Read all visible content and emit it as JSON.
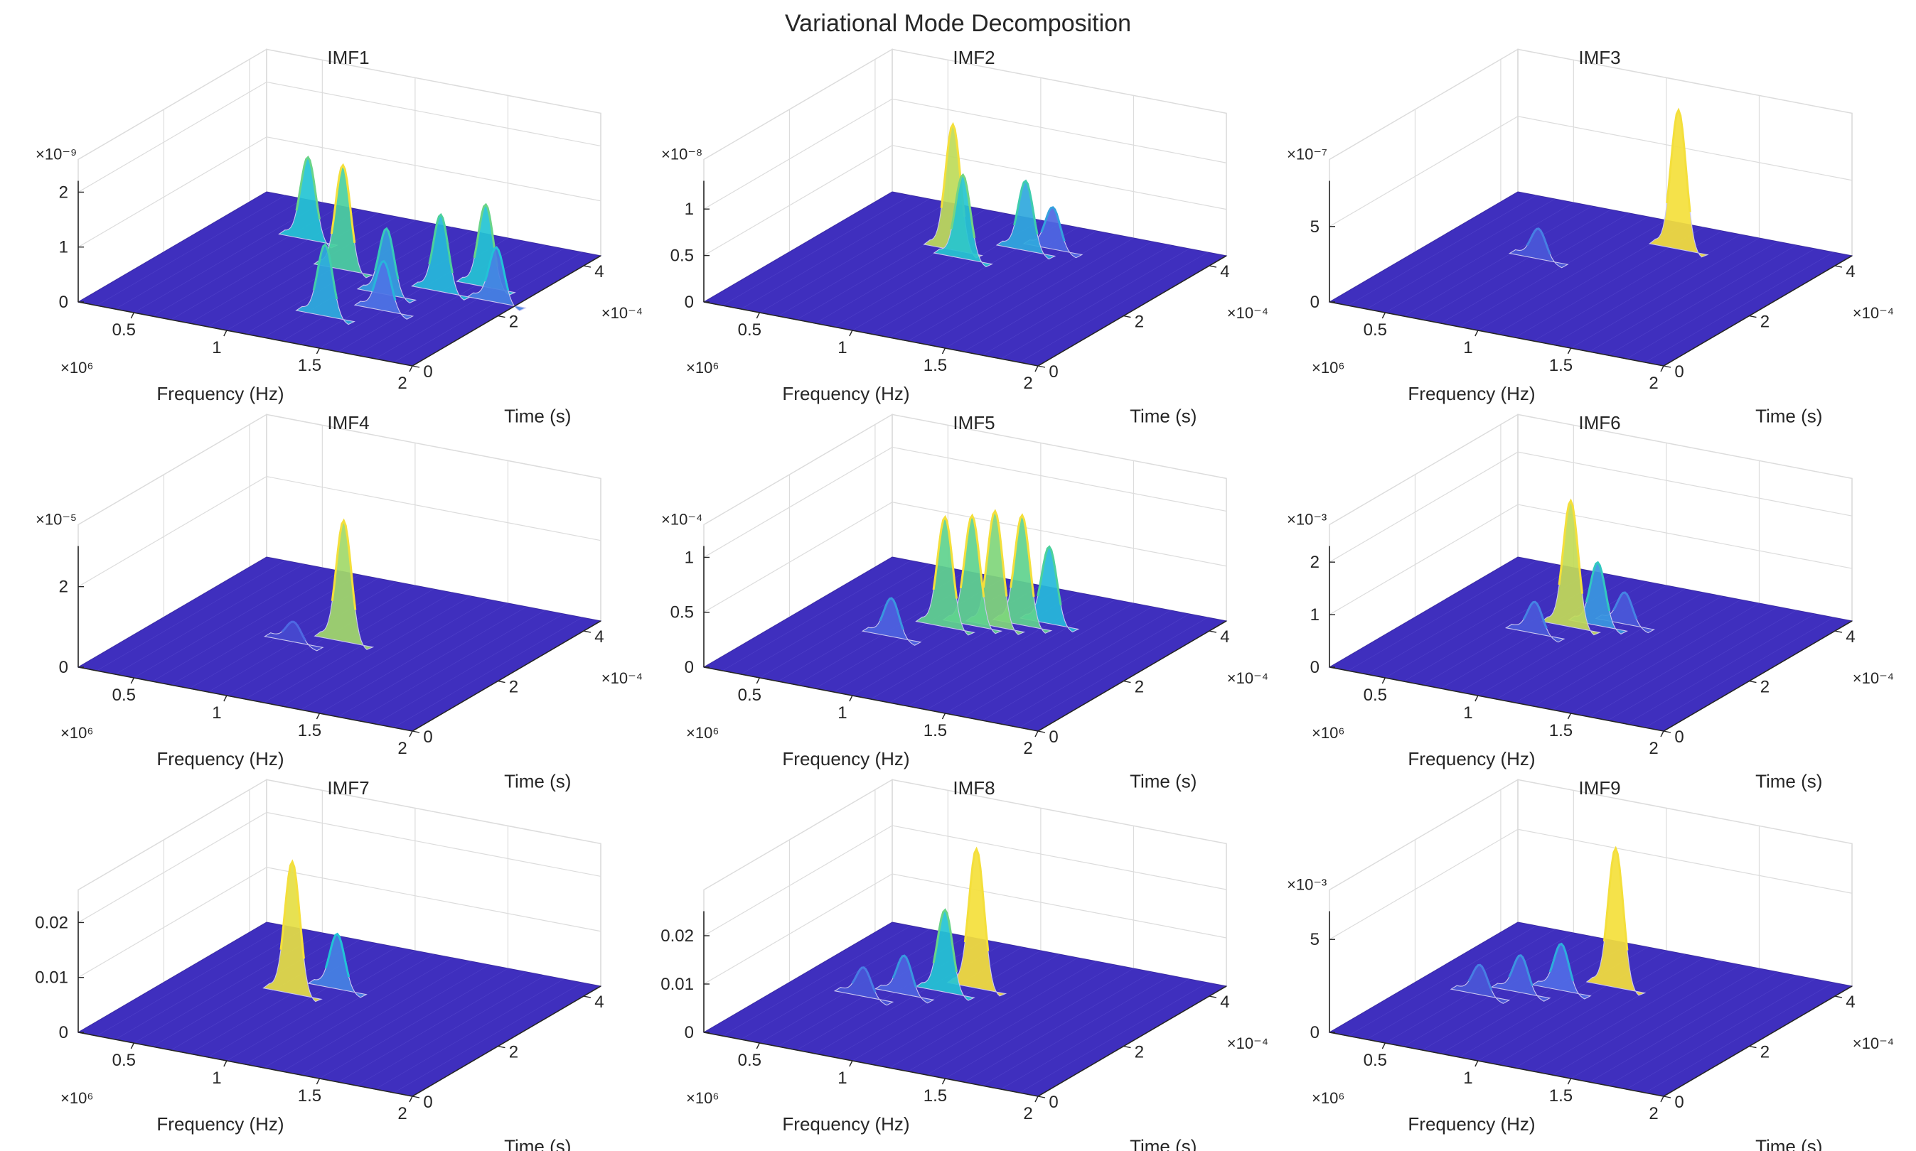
{
  "figure": {
    "title": "Variational Mode Decomposition"
  },
  "colors": {
    "surface_base": "#3F2FBE",
    "peak_cyan": "#21C3D8",
    "peak_yellow": "#F4DF3B",
    "mesh": "#C9C6F0",
    "axis": "#262626",
    "grid": "#DCDCDC"
  },
  "chart_data": [
    {
      "type": "surface3d",
      "title": "IMF1",
      "xlabel": "Frequency (Hz)",
      "ylabel": "Time (s)",
      "x_exponent": "×10⁶",
      "y_exponent": "×10⁻⁴",
      "z_exponent": "×10⁻⁹",
      "xticks": [
        "0.5",
        "1",
        "1.5",
        "2"
      ],
      "yticks": [
        "0",
        "2",
        "4"
      ],
      "zticks": [
        "0",
        "1",
        "2"
      ],
      "zlim": [
        0,
        2.2
      ],
      "peaks": [
        {
          "f": 0.7,
          "t": 3.2,
          "z": 1.5
        },
        {
          "f": 1.05,
          "t": 2.5,
          "z": 1.9
        },
        {
          "f": 1.3,
          "t": 1.0,
          "z": 1.3
        },
        {
          "f": 1.4,
          "t": 2.0,
          "z": 1.2
        },
        {
          "f": 1.6,
          "t": 2.4,
          "z": 1.4
        },
        {
          "f": 1.75,
          "t": 2.8,
          "z": 1.5
        },
        {
          "f": 1.9,
          "t": 2.4,
          "z": 1.0
        },
        {
          "f": 1.5,
          "t": 1.5,
          "z": 0.9
        }
      ]
    },
    {
      "type": "surface3d",
      "title": "IMF2",
      "xlabel": "Frequency (Hz)",
      "ylabel": "Time (s)",
      "x_exponent": "×10⁶",
      "y_exponent": "×10⁻⁴",
      "z_exponent": "×10⁻⁸",
      "xticks": [
        "0.5",
        "1",
        "1.5",
        "2"
      ],
      "yticks": [
        "0",
        "2",
        "4"
      ],
      "zticks": [
        "0",
        "0.5",
        "1"
      ],
      "zlim": [
        0,
        1.3
      ],
      "peaks": [
        {
          "f": 0.85,
          "t": 3.0,
          "z": 1.35
        },
        {
          "f": 0.95,
          "t": 2.8,
          "z": 0.9
        },
        {
          "f": 1.15,
          "t": 3.4,
          "z": 0.75
        },
        {
          "f": 1.25,
          "t": 3.6,
          "z": 0.45
        }
      ]
    },
    {
      "type": "surface3d",
      "title": "IMF3",
      "xlabel": "Frequency (Hz)",
      "ylabel": "Time (s)",
      "x_exponent": "×10⁶",
      "y_exponent": "×10⁻⁴",
      "z_exponent": "×10⁻⁷",
      "xticks": [
        "0.5",
        "1",
        "1.5",
        "2"
      ],
      "yticks": [
        "0",
        "2",
        "4"
      ],
      "zticks": [
        "0",
        "5"
      ],
      "zlim": [
        0,
        8
      ],
      "peaks": [
        {
          "f": 1.25,
          "t": 3.6,
          "z": 9.5
        },
        {
          "f": 0.75,
          "t": 2.5,
          "z": 2.0
        }
      ]
    },
    {
      "type": "surface3d",
      "title": "IMF4",
      "xlabel": "Frequency (Hz)",
      "ylabel": "Time (s)",
      "x_exponent": "×10⁶",
      "y_exponent": "×10⁻⁴",
      "z_exponent": "×10⁻⁵",
      "xticks": [
        "0.5",
        "1",
        "1.5",
        "2"
      ],
      "yticks": [
        "0",
        "2",
        "4"
      ],
      "zticks": [
        "0",
        "2"
      ],
      "zlim": [
        0,
        3
      ],
      "peaks": [
        {
          "f": 1.1,
          "t": 2.3,
          "z": 3.0
        },
        {
          "f": 0.9,
          "t": 2.0,
          "z": 0.5
        }
      ]
    },
    {
      "type": "surface3d",
      "title": "IMF5",
      "xlabel": "Frequency (Hz)",
      "ylabel": "Time (s)",
      "x_exponent": "×10⁶",
      "y_exponent": "×10⁻⁴",
      "z_exponent": "×10⁻⁴",
      "xticks": [
        "0.5",
        "1",
        "1.5",
        "2"
      ],
      "yticks": [
        "0",
        "2",
        "4"
      ],
      "zticks": [
        "0",
        "0.5",
        "1"
      ],
      "zlim": [
        0,
        1.1
      ],
      "peaks": [
        {
          "f": 0.9,
          "t": 2.6,
          "z": 1.0
        },
        {
          "f": 1.0,
          "t": 2.8,
          "z": 1.0
        },
        {
          "f": 1.1,
          "t": 2.9,
          "z": 1.05
        },
        {
          "f": 1.2,
          "t": 3.1,
          "z": 1.0
        },
        {
          "f": 1.3,
          "t": 3.3,
          "z": 0.7
        },
        {
          "f": 0.75,
          "t": 2.0,
          "z": 0.35
        }
      ]
    },
    {
      "type": "surface3d",
      "title": "IMF6",
      "xlabel": "Frequency (Hz)",
      "ylabel": "Time (s)",
      "x_exponent": "×10⁶",
      "y_exponent": "×10⁻⁴",
      "z_exponent": "×10⁻³",
      "xticks": [
        "0.5",
        "1",
        "1.5",
        "2"
      ],
      "yticks": [
        "0",
        "2",
        "4"
      ],
      "zticks": [
        "0",
        "1",
        "2"
      ],
      "zlim": [
        0,
        2.3
      ],
      "peaks": [
        {
          "f": 0.9,
          "t": 2.6,
          "z": 2.4
        },
        {
          "f": 1.0,
          "t": 2.8,
          "z": 1.2
        },
        {
          "f": 1.1,
          "t": 3.0,
          "z": 0.6
        },
        {
          "f": 0.8,
          "t": 2.2,
          "z": 0.6
        }
      ]
    },
    {
      "type": "surface3d",
      "title": "IMF7",
      "xlabel": "Frequency (Hz)",
      "ylabel": "Time (s)",
      "x_exponent": "×10⁶",
      "y_exponent": null,
      "z_exponent": null,
      "xticks": [
        "0.5",
        "1",
        "1.5",
        "2"
      ],
      "yticks": [
        "0",
        "2",
        "4"
      ],
      "zticks": [
        "0",
        "0.01",
        "0.02"
      ],
      "zlim": [
        0,
        0.022
      ],
      "peaks": [
        {
          "f": 0.8,
          "t": 2.4,
          "z": 0.024
        },
        {
          "f": 0.95,
          "t": 2.8,
          "z": 0.01
        }
      ]
    },
    {
      "type": "surface3d",
      "title": "IMF8",
      "xlabel": "Frequency (Hz)",
      "ylabel": "Time (s)",
      "x_exponent": "×10⁶",
      "y_exponent": "×10⁻⁴",
      "z_exponent": null,
      "xticks": [
        "0.5",
        "1",
        "1.5",
        "2"
      ],
      "yticks": [
        "0",
        "2",
        "4"
      ],
      "zticks": [
        "0",
        "0.01",
        "0.02"
      ],
      "zlim": [
        0,
        0.025
      ],
      "peaks": [
        {
          "f": 1.0,
          "t": 2.9,
          "z": 0.03
        },
        {
          "f": 0.9,
          "t": 2.6,
          "z": 0.017
        },
        {
          "f": 0.75,
          "t": 2.3,
          "z": 0.008
        },
        {
          "f": 0.6,
          "t": 2.0,
          "z": 0.006
        }
      ]
    },
    {
      "type": "surface3d",
      "title": "IMF9",
      "xlabel": "Frequency (Hz)",
      "ylabel": "Time (s)",
      "x_exponent": "×10⁶",
      "y_exponent": "×10⁻⁴",
      "z_exponent": "×10⁻³",
      "xticks": [
        "0.5",
        "1",
        "1.5",
        "2"
      ],
      "yticks": [
        "0",
        "2",
        "4"
      ],
      "zticks": [
        "0",
        "5"
      ],
      "zlim": [
        0,
        6.5
      ],
      "peaks": [
        {
          "f": 1.05,
          "t": 3.0,
          "z": 7.5
        },
        {
          "f": 0.85,
          "t": 2.6,
          "z": 2.5
        },
        {
          "f": 0.7,
          "t": 2.3,
          "z": 2.0
        },
        {
          "f": 0.55,
          "t": 2.0,
          "z": 1.6
        }
      ]
    }
  ]
}
